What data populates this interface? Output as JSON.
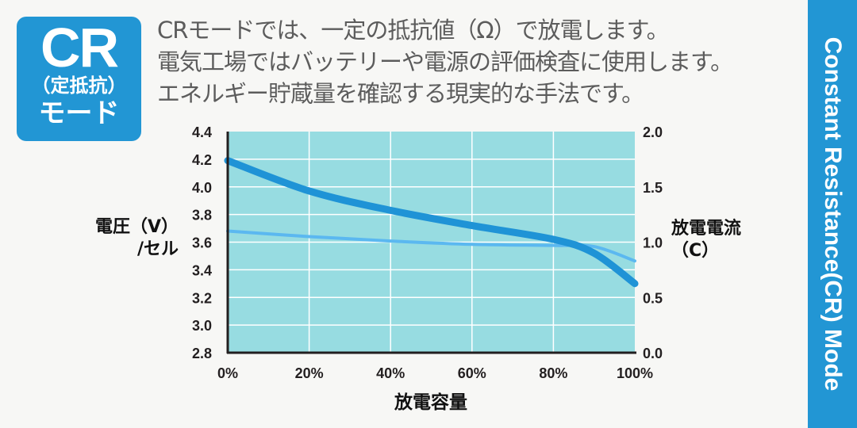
{
  "badge": {
    "title": "CR",
    "subtitle": "（定抵抗）",
    "mode": "モード",
    "color": "#2296d4"
  },
  "description": {
    "lines": [
      "CRモードでは、一定の抵抗値（Ω）で放電します。",
      "電気工場ではバッテリーや電源の評価検査に使用します。",
      "エネルギー貯蔵量を確認する現実的な手法です。"
    ]
  },
  "sidebar": {
    "label": "Constant Resistance(CR) Mode"
  },
  "chart_data": {
    "type": "line",
    "title": "",
    "xlabel": "放電容量",
    "ylabel": "電圧（V）/セル",
    "y2label": "放電電流（C）",
    "x_ticks": [
      "0%",
      "20%",
      "40%",
      "60%",
      "80%",
      "100%"
    ],
    "y_ticks": [
      "4.4",
      "4.2",
      "4.0",
      "3.8",
      "3.6",
      "3.4",
      "3.2",
      "3.0",
      "2.8"
    ],
    "y2_ticks": [
      "2.0",
      "1.5",
      "1.0",
      "0.5",
      "0.0"
    ],
    "ylim": [
      2.8,
      4.4
    ],
    "y2lim": [
      0.0,
      2.0
    ],
    "grid": true,
    "background": "#97dce1",
    "x": [
      0,
      20,
      40,
      60,
      80,
      90,
      100
    ],
    "series": [
      {
        "name": "電圧",
        "axis": "left",
        "color": "#1f93d6",
        "values": [
          4.19,
          3.97,
          3.83,
          3.72,
          3.62,
          3.52,
          3.3
        ]
      },
      {
        "name": "放電電流",
        "axis": "right",
        "color": "#5bb8f0",
        "values": [
          1.1,
          1.05,
          1.01,
          0.98,
          0.97,
          0.96,
          0.83
        ]
      }
    ]
  }
}
